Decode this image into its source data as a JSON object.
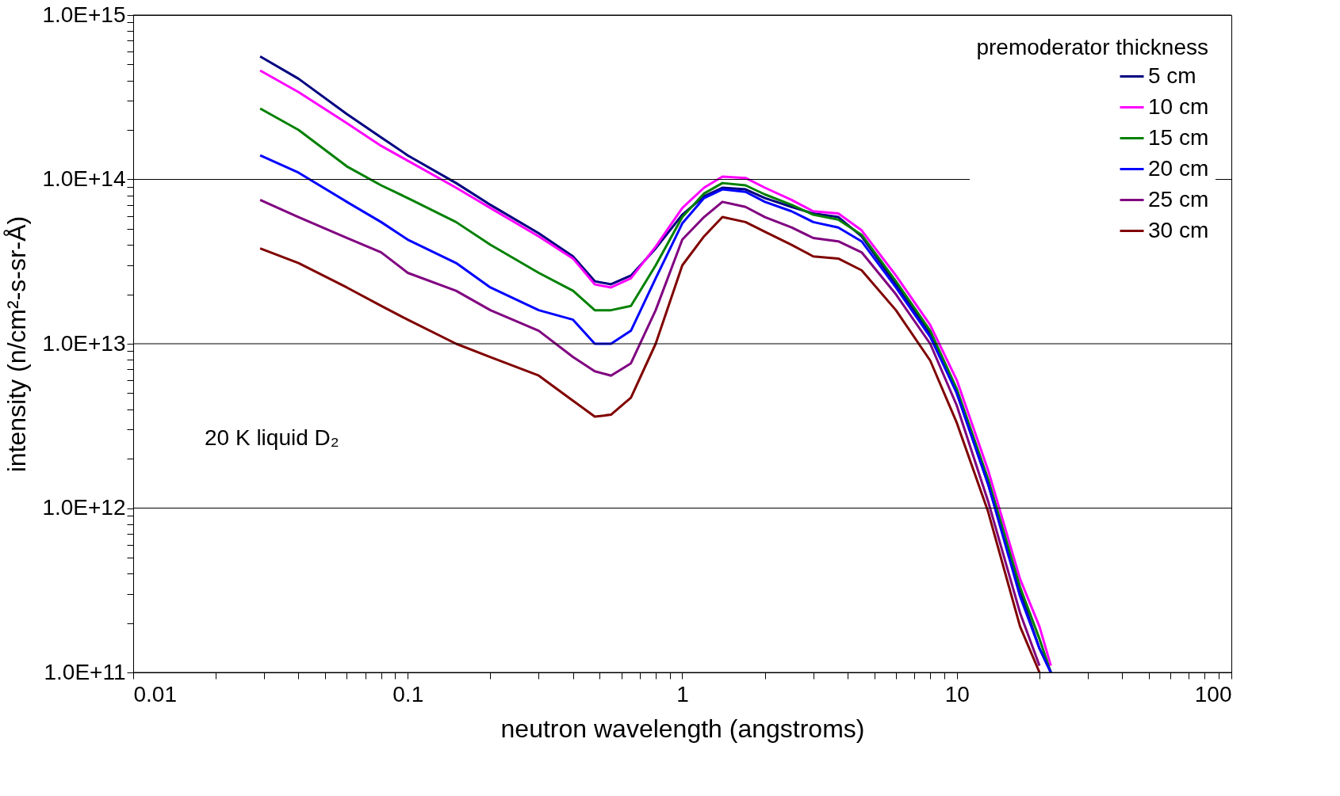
{
  "chart_data": {
    "type": "line",
    "xlabel": "neutron wavelength (angstroms)",
    "ylabel": "intensity (n/cm²-s-sr-Å)",
    "legend_title": "premoderator thickness",
    "legend": "top right",
    "grid": "y",
    "log": "xy",
    "line_style": "solid",
    "marker": "none",
    "annotations": [
      "20 K liquid D₂"
    ],
    "x": [
      0.029,
      0.04,
      0.06,
      0.08,
      0.1,
      0.15,
      0.2,
      0.3,
      0.4,
      0.48,
      0.55,
      0.65,
      0.8,
      1.0,
      1.2,
      1.4,
      1.7,
      2.0,
      2.5,
      3.0,
      3.7,
      4.5,
      6,
      8,
      10,
      13,
      17,
      20,
      22
    ],
    "xlim": [
      0.01,
      100
    ],
    "ylim": [
      100000000000.0,
      1000000000000000.0
    ],
    "xticks": [
      0.01,
      {
        "value": 0.02,
        "label": null
      },
      {
        "value": 0.03,
        "label": null
      },
      {
        "value": 0.04,
        "label": null
      },
      {
        "value": 0.05,
        "label": null
      },
      {
        "value": 0.06,
        "label": null
      },
      {
        "value": 0.07,
        "label": null
      },
      {
        "value": 0.08,
        "label": null
      },
      {
        "value": 0.09,
        "label": null
      },
      0.1,
      {
        "value": 0.2,
        "label": null
      },
      {
        "value": 0.3,
        "label": null
      },
      {
        "value": 0.4,
        "label": null
      },
      {
        "value": 0.5,
        "label": null
      },
      {
        "value": 0.6,
        "label": null
      },
      {
        "value": 0.7,
        "label": null
      },
      {
        "value": 0.8,
        "label": null
      },
      {
        "value": 0.9,
        "label": null
      },
      1,
      {
        "value": 2,
        "label": null
      },
      {
        "value": 3,
        "label": null
      },
      {
        "value": 4,
        "label": null
      },
      {
        "value": 5,
        "label": null
      },
      {
        "value": 6,
        "label": null
      },
      {
        "value": 7,
        "label": null
      },
      {
        "value": 8,
        "label": null
      },
      {
        "value": 9,
        "label": null
      },
      10,
      {
        "value": 20,
        "label": null
      },
      {
        "value": 30,
        "label": null
      },
      {
        "value": 40,
        "label": null
      },
      {
        "value": 50,
        "label": null
      },
      {
        "value": 60,
        "label": null
      },
      {
        "value": 70,
        "label": null
      },
      {
        "value": 80,
        "label": null
      },
      {
        "value": 90,
        "label": null
      },
      100
    ],
    "yticks": [
      {
        "value": 100000000000.0,
        "label": "1.0E+11"
      },
      {
        "value": 200000000000.0,
        "label": null
      },
      {
        "value": 300000000000.0,
        "label": null
      },
      {
        "value": 400000000000.0,
        "label": null
      },
      {
        "value": 500000000000.0,
        "label": null
      },
      {
        "value": 600000000000.0,
        "label": null
      },
      {
        "value": 700000000000.0,
        "label": null
      },
      {
        "value": 800000000000.0,
        "label": null
      },
      {
        "value": 900000000000.0,
        "label": null
      },
      {
        "value": 1000000000000.0,
        "label": "1.0E+12"
      },
      {
        "value": 2000000000000.0,
        "label": null
      },
      {
        "value": 3000000000000.0,
        "label": null
      },
      {
        "value": 4000000000000.0,
        "label": null
      },
      {
        "value": 5000000000000.0,
        "label": null
      },
      {
        "value": 6000000000000.0,
        "label": null
      },
      {
        "value": 7000000000000.0,
        "label": null
      },
      {
        "value": 8000000000000.0,
        "label": null
      },
      {
        "value": 9000000000000.0,
        "label": null
      },
      {
        "value": 10000000000000.0,
        "label": "1.0E+13"
      },
      {
        "value": 20000000000000.0,
        "label": null
      },
      {
        "value": 30000000000000.0,
        "label": null
      },
      {
        "value": 40000000000000.0,
        "label": null
      },
      {
        "value": 50000000000000.0,
        "label": null
      },
      {
        "value": 60000000000000.0,
        "label": null
      },
      {
        "value": 70000000000000.0,
        "label": null
      },
      {
        "value": 80000000000000.0,
        "label": null
      },
      {
        "value": 90000000000000.0,
        "label": null
      },
      {
        "value": 100000000000000.0,
        "label": "1.0E+14"
      },
      {
        "value": 200000000000000.0,
        "label": null
      },
      {
        "value": 300000000000000.0,
        "label": null
      },
      {
        "value": 400000000000000.0,
        "label": null
      },
      {
        "value": 500000000000000.0,
        "label": null
      },
      {
        "value": 600000000000000.0,
        "label": null
      },
      {
        "value": 700000000000000.0,
        "label": null
      },
      {
        "value": 800000000000000.0,
        "label": null
      },
      {
        "value": 900000000000000.0,
        "label": null
      },
      {
        "value": 1000000000000000.0,
        "label": "1.0E+15"
      }
    ],
    "series": [
      {
        "name": " 5 cm",
        "color": "#000080",
        "values": [
          560000000000000.0,
          410000000000000.0,
          250000000000000.0,
          180000000000000.0,
          140000000000000.0,
          95000000000000.0,
          70000000000000.0,
          47000000000000.0,
          34000000000000.0,
          24000000000000.0,
          23000000000000.0,
          26000000000000.0,
          38000000000000.0,
          61000000000000.0,
          79000000000000.0,
          89000000000000.0,
          87000000000000.0,
          77000000000000.0,
          68000000000000.0,
          62000000000000.0,
          59000000000000.0,
          45000000000000.0,
          23000000000000.0,
          11500000000000.0,
          5000000000000.0,
          1400000000000.0,
          310000000000.0,
          140000000000.0,
          100000000000.0
        ]
      },
      {
        "name": "10 cm",
        "color": "#ff00ff",
        "values": [
          460000000000000.0,
          340000000000000.0,
          220000000000000.0,
          160000000000000.0,
          130000000000000.0,
          89000000000000.0,
          67000000000000.0,
          45000000000000.0,
          33000000000000.0,
          23000000000000.0,
          22000000000000.0,
          25000000000000.0,
          39000000000000.0,
          67000000000000.0,
          89000000000000.0,
          104000000000000.0,
          102000000000000.0,
          89000000000000.0,
          75000000000000.0,
          64000000000000.0,
          62000000000000.0,
          49000000000000.0,
          26000000000000.0,
          13000000000000.0,
          6000000000000.0,
          1700000000000.0,
          370000000000.0,
          190000000000.0,
          110000000000.0
        ]
      },
      {
        "name": "15 cm",
        "color": "#008000",
        "values": [
          270000000000000.0,
          200000000000000.0,
          120000000000000.0,
          92000000000000.0,
          77000000000000.0,
          55000000000000.0,
          40000000000000.0,
          27000000000000.0,
          21000000000000.0,
          16000000000000.0,
          16000000000000.0,
          17000000000000.0,
          30000000000000.0,
          59000000000000.0,
          82000000000000.0,
          95000000000000.0,
          92000000000000.0,
          81000000000000.0,
          70000000000000.0,
          61000000000000.0,
          57000000000000.0,
          46000000000000.0,
          24000000000000.0,
          12000000000000.0,
          5300000000000.0,
          1500000000000.0,
          330000000000.0,
          160000000000.0,
          100000000000.0
        ]
      },
      {
        "name": "20 cm",
        "color": "#0000ff",
        "values": [
          140000000000000.0,
          110000000000000.0,
          73000000000000.0,
          55000000000000.0,
          43000000000000.0,
          31000000000000.0,
          22000000000000.0,
          16000000000000.0,
          14000000000000.0,
          10000000000000.0,
          10000000000000.0,
          12000000000000.0,
          25000000000000.0,
          54000000000000.0,
          77000000000000.0,
          87000000000000.0,
          84000000000000.0,
          73000000000000.0,
          64000000000000.0,
          55000000000000.0,
          51000000000000.0,
          42000000000000.0,
          22000000000000.0,
          11000000000000.0,
          5000000000000.0,
          1400000000000.0,
          290000000000.0,
          140000000000.0,
          100000000000.0
        ]
      },
      {
        "name": "25 cm",
        "color": "#800080",
        "values": [
          75000000000000.0,
          59000000000000.0,
          44000000000000.0,
          36000000000000.0,
          27000000000000.0,
          21000000000000.0,
          16000000000000.0,
          12000000000000.0,
          8300000000000.0,
          6800000000000.0,
          6400000000000.0,
          7600000000000.0,
          16000000000000.0,
          43000000000000.0,
          59000000000000.0,
          73000000000000.0,
          68000000000000.0,
          59000000000000.0,
          51000000000000.0,
          44000000000000.0,
          42000000000000.0,
          36000000000000.0,
          20000000000000.0,
          10000000000000.0,
          4200000000000.0,
          1100000000000.0,
          230000000000.0,
          110000000000.0,
          null
        ]
      },
      {
        "name": "30 cm",
        "color": "#800000",
        "values": [
          38000000000000.0,
          31000000000000.0,
          22000000000000.0,
          17000000000000.0,
          14000000000000.0,
          10000000000000.0,
          8300000000000.0,
          6400000000000.0,
          4500000000000.0,
          3600000000000.0,
          3700000000000.0,
          4700000000000.0,
          10000000000000.0,
          30000000000000.0,
          45000000000000.0,
          59000000000000.0,
          55000000000000.0,
          48000000000000.0,
          40000000000000.0,
          34000000000000.0,
          33000000000000.0,
          28000000000000.0,
          16000000000000.0,
          7900000000000.0,
          3300000000000.0,
          950000000000.0,
          190000000000.0,
          100000000000.0,
          null
        ]
      }
    ]
  }
}
